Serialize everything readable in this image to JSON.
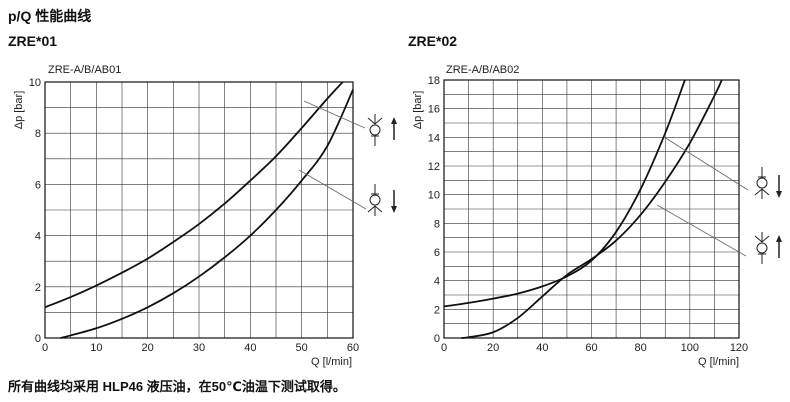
{
  "page": {
    "heading": "p/Q  性能曲线",
    "footnote": "所有曲线均采用 HLP46 液压油，在50℃油温下测试取得。"
  },
  "colors": {
    "curve": "#111111",
    "grid": "#333333",
    "leader": "#666666",
    "symbol": "#222222"
  },
  "chart_data": [
    {
      "type": "line",
      "heading": "ZRE*01",
      "title": "ZRE-A/B/AB01",
      "xlabel": "Q [l/min]",
      "ylabel": "Δp [bar]",
      "xlim": [
        0,
        60
      ],
      "ylim": [
        0,
        10
      ],
      "xticks": [
        0,
        10,
        20,
        30,
        40,
        50,
        60
      ],
      "yticks": [
        0,
        2,
        4,
        6,
        8,
        10
      ],
      "grid": true,
      "series": [
        {
          "x": [
            0,
            5,
            10,
            15,
            20,
            25,
            30,
            35,
            40,
            45,
            50,
            55,
            58
          ],
          "y": [
            1.2,
            1.6,
            2.05,
            2.55,
            3.1,
            3.75,
            4.45,
            5.25,
            6.15,
            7.1,
            8.2,
            9.35,
            10.0
          ]
        },
        {
          "x": [
            3,
            5,
            10,
            15,
            20,
            25,
            30,
            35,
            40,
            45,
            50,
            55,
            60
          ],
          "y": [
            0.0,
            0.1,
            0.38,
            0.75,
            1.2,
            1.75,
            2.4,
            3.15,
            4.0,
            5.0,
            6.15,
            7.5,
            9.7
          ]
        }
      ]
    },
    {
      "type": "line",
      "heading": "ZRE*02",
      "title": "ZRE-A/B/AB02",
      "xlabel": "Q [l/min]",
      "ylabel": "Δp [bar]",
      "xlim": [
        0,
        120
      ],
      "ylim": [
        0,
        18
      ],
      "xticks": [
        0,
        20,
        40,
        60,
        80,
        100,
        120
      ],
      "yticks": [
        0,
        2,
        4,
        6,
        8,
        10,
        12,
        14,
        16,
        18
      ],
      "grid": true,
      "series": [
        {
          "x": [
            0,
            10,
            20,
            30,
            40,
            50,
            60,
            70,
            80,
            90,
            98
          ],
          "y": [
            2.2,
            2.45,
            2.75,
            3.1,
            3.6,
            4.3,
            5.4,
            7.4,
            10.4,
            14.3,
            18.0
          ]
        },
        {
          "x": [
            7,
            10,
            20,
            30,
            40,
            50,
            60,
            70,
            80,
            90,
            100,
            110,
            113
          ],
          "y": [
            0.0,
            0.05,
            0.4,
            1.4,
            2.9,
            4.4,
            5.5,
            6.8,
            8.6,
            10.9,
            13.6,
            16.9,
            18.0
          ]
        }
      ]
    }
  ]
}
